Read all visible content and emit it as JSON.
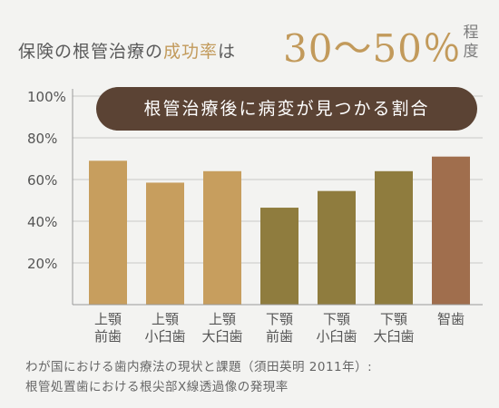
{
  "headline": {
    "pre_text_1": "保険の根管治療の",
    "pre_text_highlight": "成功率",
    "pre_text_2": "は",
    "big_text": "30～50％",
    "suffix_text": "程度"
  },
  "chart_data": {
    "type": "bar",
    "title": "根管治療後に病変が見つかる割合",
    "categories": [
      [
        "上顎",
        "前歯"
      ],
      [
        "上顎",
        "小臼歯"
      ],
      [
        "上顎",
        "大臼歯"
      ],
      [
        "下顎",
        "前歯"
      ],
      [
        "下顎",
        "小臼歯"
      ],
      [
        "下顎",
        "大臼歯"
      ],
      [
        "智歯"
      ]
    ],
    "values": [
      69,
      58.5,
      64,
      46.5,
      54.5,
      64,
      71
    ],
    "bar_colors": [
      "#c79e5e",
      "#c79e5e",
      "#c79e5e",
      "#8f7c3e",
      "#8f7c3e",
      "#8f7c3e",
      "#a06e4d"
    ],
    "yticks": [
      20,
      40,
      60,
      80,
      100
    ],
    "ytick_labels": [
      "20%",
      "40%",
      "60%",
      "80%",
      "100%"
    ],
    "ylim": [
      0,
      100
    ],
    "grid": true,
    "grid_color": "#c8c8c8",
    "axis_color": "#999999"
  },
  "source": {
    "line1": "わが国における歯内療法の現状と課題（須田英明 2011年）:",
    "line2": "根管処置歯における根尖部X線透過像の発現率"
  }
}
